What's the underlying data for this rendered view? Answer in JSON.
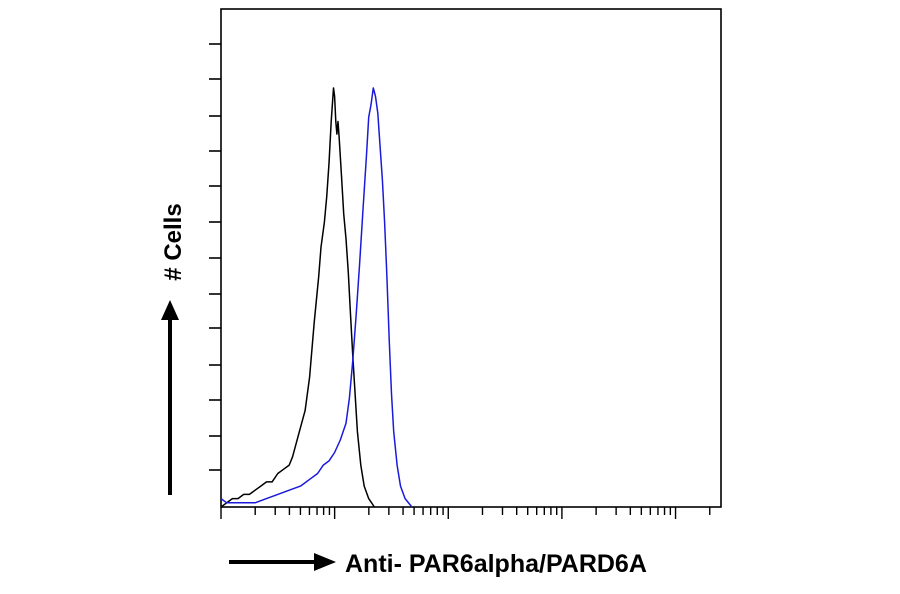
{
  "chart_data": {
    "type": "line",
    "title": "",
    "xlabel": "Anti- PAR6alpha/PARD6A",
    "ylabel": "# Cells",
    "x_scale": "log",
    "x_decades": 4.4,
    "grid": false,
    "series": [
      {
        "color": "#000000",
        "points": [
          [
            0.0,
            0.0
          ],
          [
            0.05,
            0.01
          ],
          [
            0.1,
            0.02
          ],
          [
            0.15,
            0.02
          ],
          [
            0.2,
            0.03
          ],
          [
            0.25,
            0.03
          ],
          [
            0.3,
            0.04
          ],
          [
            0.35,
            0.05
          ],
          [
            0.4,
            0.06
          ],
          [
            0.45,
            0.06
          ],
          [
            0.5,
            0.08
          ],
          [
            0.55,
            0.09
          ],
          [
            0.6,
            0.1
          ],
          [
            0.63,
            0.12
          ],
          [
            0.66,
            0.15
          ],
          [
            0.7,
            0.19
          ],
          [
            0.74,
            0.23
          ],
          [
            0.78,
            0.31
          ],
          [
            0.82,
            0.44
          ],
          [
            0.86,
            0.55
          ],
          [
            0.88,
            0.62
          ],
          [
            0.91,
            0.68
          ],
          [
            0.93,
            0.74
          ],
          [
            0.95,
            0.82
          ],
          [
            0.97,
            0.92
          ],
          [
            0.99,
            1.0
          ],
          [
            1.0,
            0.98
          ],
          [
            1.01,
            0.92
          ],
          [
            1.02,
            0.89
          ],
          [
            1.03,
            0.92
          ],
          [
            1.04,
            0.88
          ],
          [
            1.06,
            0.79
          ],
          [
            1.08,
            0.7
          ],
          [
            1.1,
            0.64
          ],
          [
            1.12,
            0.56
          ],
          [
            1.14,
            0.46
          ],
          [
            1.16,
            0.36
          ],
          [
            1.18,
            0.27
          ],
          [
            1.2,
            0.18
          ],
          [
            1.23,
            0.1
          ],
          [
            1.26,
            0.05
          ],
          [
            1.3,
            0.02
          ],
          [
            1.35,
            0.0
          ]
        ]
      },
      {
        "color": "#1a1adb",
        "points": [
          [
            0.0,
            0.02
          ],
          [
            0.05,
            0.01
          ],
          [
            0.1,
            0.01
          ],
          [
            0.15,
            0.01
          ],
          [
            0.2,
            0.01
          ],
          [
            0.3,
            0.01
          ],
          [
            0.4,
            0.02
          ],
          [
            0.5,
            0.03
          ],
          [
            0.6,
            0.04
          ],
          [
            0.7,
            0.05
          ],
          [
            0.8,
            0.07
          ],
          [
            0.85,
            0.08
          ],
          [
            0.9,
            0.1
          ],
          [
            0.95,
            0.11
          ],
          [
            1.0,
            0.13
          ],
          [
            1.05,
            0.16
          ],
          [
            1.1,
            0.2
          ],
          [
            1.13,
            0.26
          ],
          [
            1.16,
            0.35
          ],
          [
            1.19,
            0.46
          ],
          [
            1.22,
            0.58
          ],
          [
            1.25,
            0.71
          ],
          [
            1.28,
            0.84
          ],
          [
            1.3,
            0.93
          ],
          [
            1.32,
            0.96
          ],
          [
            1.34,
            1.0
          ],
          [
            1.36,
            0.98
          ],
          [
            1.38,
            0.94
          ],
          [
            1.4,
            0.86
          ],
          [
            1.42,
            0.78
          ],
          [
            1.44,
            0.68
          ],
          [
            1.46,
            0.55
          ],
          [
            1.48,
            0.4
          ],
          [
            1.5,
            0.27
          ],
          [
            1.52,
            0.18
          ],
          [
            1.55,
            0.1
          ],
          [
            1.58,
            0.05
          ],
          [
            1.62,
            0.02
          ],
          [
            1.68,
            0.0
          ]
        ]
      }
    ]
  }
}
